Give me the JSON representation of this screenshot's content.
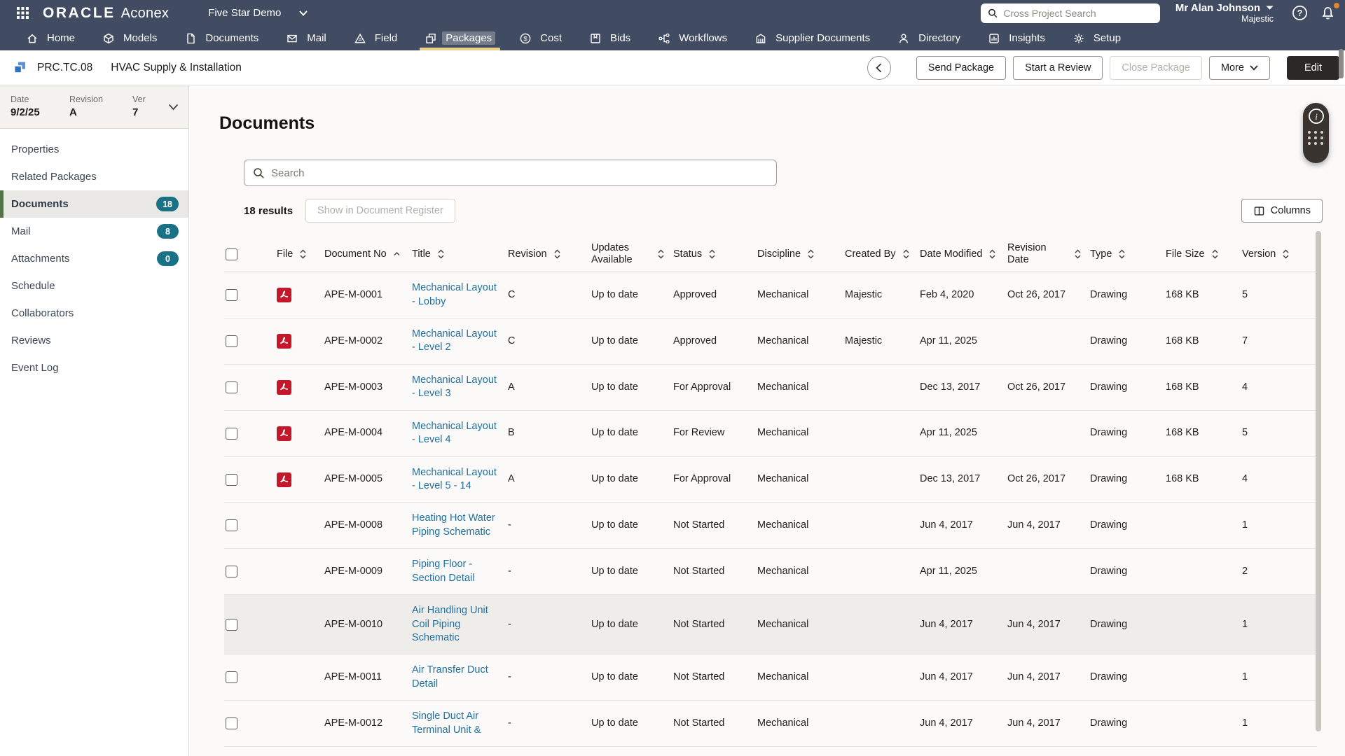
{
  "topbar": {
    "brand": {
      "oracle": "ORACLE",
      "product": "Aconex"
    },
    "project": "Five Star Demo",
    "search_placeholder": "Cross Project Search",
    "user": {
      "name": "Mr Alan Johnson",
      "org": "Majestic"
    },
    "nav": [
      {
        "label": "Home"
      },
      {
        "label": "Models"
      },
      {
        "label": "Documents"
      },
      {
        "label": "Mail"
      },
      {
        "label": "Field"
      },
      {
        "label": "Packages",
        "active": true
      },
      {
        "label": "Cost"
      },
      {
        "label": "Bids"
      },
      {
        "label": "Workflows"
      },
      {
        "label": "Supplier Documents"
      },
      {
        "label": "Directory"
      },
      {
        "label": "Insights"
      },
      {
        "label": "Setup"
      }
    ]
  },
  "package_header": {
    "code": "PRC.TC.08",
    "title": "HVAC Supply & Installation",
    "actions": {
      "send": "Send Package",
      "review": "Start a Review",
      "close": "Close Package",
      "more": "More",
      "edit": "Edit"
    }
  },
  "sidebar": {
    "meta": {
      "date_label": "Date",
      "date": "9/2/25",
      "revision_label": "Revision",
      "revision": "A",
      "version_label": "Ver",
      "version": "7"
    },
    "items": [
      {
        "label": "Properties"
      },
      {
        "label": "Related Packages"
      },
      {
        "label": "Documents",
        "badge": "18",
        "active": true
      },
      {
        "label": "Mail",
        "badge": "8"
      },
      {
        "label": "Attachments",
        "badge": "0"
      },
      {
        "label": "Schedule"
      },
      {
        "label": "Collaborators"
      },
      {
        "label": "Reviews"
      },
      {
        "label": "Event Log"
      }
    ]
  },
  "main": {
    "title": "Documents",
    "search_placeholder": "Search",
    "results_count": "18 results",
    "register_button": "Show in Document Register",
    "columns_button": "Columns",
    "table": {
      "columns": [
        {
          "key": "select",
          "type": "checkbox"
        },
        {
          "key": "file",
          "label": "File",
          "sort": "both"
        },
        {
          "key": "doc_no",
          "label": "Document No",
          "sort": "asc"
        },
        {
          "key": "title",
          "label": "Title",
          "sort": "both"
        },
        {
          "key": "revision",
          "label": "Revision",
          "sort": "both"
        },
        {
          "key": "updates",
          "label": "Updates Available",
          "sort": "both"
        },
        {
          "key": "status",
          "label": "Status",
          "sort": "both"
        },
        {
          "key": "discipline",
          "label": "Discipline",
          "sort": "both"
        },
        {
          "key": "created_by",
          "label": "Created By",
          "sort": "both"
        },
        {
          "key": "date_modified",
          "label": "Date Modified",
          "sort": "both"
        },
        {
          "key": "revision_date",
          "label": "Revision Date",
          "sort": "both"
        },
        {
          "key": "type",
          "label": "Type",
          "sort": "both"
        },
        {
          "key": "file_size",
          "label": "File Size",
          "sort": "both"
        },
        {
          "key": "version",
          "label": "Version",
          "sort": "both"
        }
      ],
      "rows": [
        {
          "file": "pdf",
          "doc_no": "APE-M-0001",
          "title": "Mechanical Layout - Lobby",
          "revision": "C",
          "updates": "Up to date",
          "status": "Approved",
          "discipline": "Mechanical",
          "created_by": "Majestic",
          "date_modified": "Feb 4, 2020",
          "revision_date": "Oct 26, 2017",
          "type": "Drawing",
          "file_size": "168 KB",
          "version": "5"
        },
        {
          "file": "pdf",
          "doc_no": "APE-M-0002",
          "title": "Mechanical Layout - Level 2",
          "revision": "C",
          "updates": "Up to date",
          "status": "Approved",
          "discipline": "Mechanical",
          "created_by": "Majestic",
          "date_modified": "Apr 11, 2025",
          "revision_date": "",
          "type": "Drawing",
          "file_size": "168 KB",
          "version": "7"
        },
        {
          "file": "pdf",
          "doc_no": "APE-M-0003",
          "title": "Mechanical Layout - Level 3",
          "revision": "A",
          "updates": "Up to date",
          "status": "For Approval",
          "discipline": "Mechanical",
          "created_by": "",
          "date_modified": "Dec 13, 2017",
          "revision_date": "Oct 26, 2017",
          "type": "Drawing",
          "file_size": "168 KB",
          "version": "4"
        },
        {
          "file": "pdf",
          "doc_no": "APE-M-0004",
          "title": "Mechanical Layout - Level 4",
          "revision": "B",
          "updates": "Up to date",
          "status": "For Review",
          "discipline": "Mechanical",
          "created_by": "",
          "date_modified": "Apr 11, 2025",
          "revision_date": "",
          "type": "Drawing",
          "file_size": "168 KB",
          "version": "5"
        },
        {
          "file": "pdf",
          "doc_no": "APE-M-0005",
          "title": "Mechanical Layout - Level 5 - 14",
          "revision": "A",
          "updates": "Up to date",
          "status": "For Approval",
          "discipline": "Mechanical",
          "created_by": "",
          "date_modified": "Dec 13, 2017",
          "revision_date": "Oct 26, 2017",
          "type": "Drawing",
          "file_size": "168 KB",
          "version": "4"
        },
        {
          "file": "",
          "doc_no": "APE-M-0008",
          "title": "Heating Hot Water Piping Schematic",
          "revision": "-",
          "updates": "Up to date",
          "status": "Not Started",
          "discipline": "Mechanical",
          "created_by": "",
          "date_modified": "Jun 4, 2017",
          "revision_date": "Jun 4, 2017",
          "type": "Drawing",
          "file_size": "",
          "version": "1"
        },
        {
          "file": "",
          "doc_no": "APE-M-0009",
          "title": "Piping Floor - Section Detail",
          "revision": "-",
          "updates": "Up to date",
          "status": "Not Started",
          "discipline": "Mechanical",
          "created_by": "",
          "date_modified": "Apr 11, 2025",
          "revision_date": "",
          "type": "Drawing",
          "file_size": "",
          "version": "2"
        },
        {
          "file": "",
          "doc_no": "APE-M-0010",
          "title": "Air Handling Unit Coil Piping Schematic",
          "revision": "-",
          "updates": "Up to date",
          "status": "Not Started",
          "discipline": "Mechanical",
          "created_by": "",
          "date_modified": "Jun 4, 2017",
          "revision_date": "Jun 4, 2017",
          "type": "Drawing",
          "file_size": "",
          "version": "1",
          "highlighted": true
        },
        {
          "file": "",
          "doc_no": "APE-M-0011",
          "title": "Air Transfer Duct Detail",
          "revision": "-",
          "updates": "Up to date",
          "status": "Not Started",
          "discipline": "Mechanical",
          "created_by": "",
          "date_modified": "Jun 4, 2017",
          "revision_date": "Jun 4, 2017",
          "type": "Drawing",
          "file_size": "",
          "version": "1"
        },
        {
          "file": "",
          "doc_no": "APE-M-0012",
          "title": "Single Duct Air Terminal Unit &",
          "revision": "-",
          "updates": "Up to date",
          "status": "Not Started",
          "discipline": "Mechanical",
          "created_by": "",
          "date_modified": "Jun 4, 2017",
          "revision_date": "Jun 4, 2017",
          "type": "Drawing",
          "file_size": "",
          "version": "1"
        }
      ]
    }
  },
  "colors": {
    "topbar_bg": "#414b61",
    "active_tab_underline": "#ead189",
    "badge_bg": "#197186",
    "link": "#21709f",
    "sidebar_active_border": "#557247",
    "pdf_red": "#c4172c",
    "edit_button_bg": "#2b2825",
    "notification_dot": "#e1842f"
  }
}
